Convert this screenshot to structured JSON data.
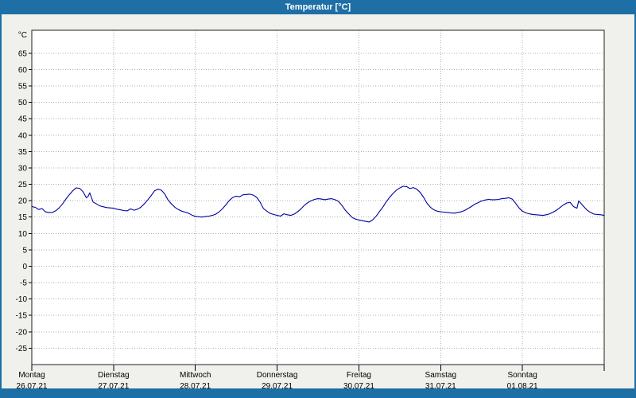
{
  "window": {
    "title": "Temperatur [°C]"
  },
  "colors": {
    "titlebar": "#1d6fa5",
    "background": "#f0f0ec",
    "plot_background": "#ffffff",
    "plot_border": "#202020",
    "gridline": "#b0b0b0",
    "line": "#0000a0"
  },
  "chart_data": {
    "type": "line",
    "title": "Temperatur [°C]",
    "legend": "none",
    "grid": {
      "style": "dotted",
      "horizontal_step_deg": 5,
      "vertical_step_hours": 24
    },
    "y_axis": {
      "unit": "°C",
      "ticks": [
        65,
        60,
        55,
        50,
        45,
        40,
        35,
        30,
        25,
        20,
        15,
        10,
        5,
        0,
        -5,
        -10,
        -15,
        -20,
        -25
      ],
      "ylim": [
        -30,
        72
      ]
    },
    "x_axis": {
      "hours_span": 168,
      "days": [
        {
          "name": "Montag",
          "date": "26.07.21"
        },
        {
          "name": "Dienstag",
          "date": "27.07.21"
        },
        {
          "name": "Mittwoch",
          "date": "28.07.21"
        },
        {
          "name": "Donnerstag",
          "date": "29.07.21"
        },
        {
          "name": "Freitag",
          "date": "30.07.21"
        },
        {
          "name": "Samstag",
          "date": "31.07.21"
        },
        {
          "name": "Sonntag",
          "date": "01.08.21"
        }
      ]
    },
    "series": [
      {
        "name": "Temperatur",
        "color": "#0000a0",
        "points": [
          [
            0,
            18.2
          ],
          [
            1,
            18.0
          ],
          [
            2,
            17.3
          ],
          [
            3,
            17.6
          ],
          [
            4,
            16.6
          ],
          [
            5,
            16.4
          ],
          [
            6,
            16.4
          ],
          [
            7,
            16.9
          ],
          [
            8,
            17.8
          ],
          [
            9,
            19.0
          ],
          [
            10,
            20.5
          ],
          [
            11,
            21.8
          ],
          [
            12,
            23.0
          ],
          [
            13,
            23.9
          ],
          [
            14,
            23.8
          ],
          [
            15,
            22.8
          ],
          [
            16,
            20.9
          ],
          [
            16.5,
            21.3
          ],
          [
            17,
            22.4
          ],
          [
            17.5,
            21.0
          ],
          [
            18,
            19.6
          ],
          [
            19,
            19.0
          ],
          [
            20,
            18.4
          ],
          [
            22,
            17.9
          ],
          [
            24,
            17.7
          ],
          [
            25,
            17.4
          ],
          [
            26,
            17.2
          ],
          [
            27,
            17.0
          ],
          [
            28,
            16.9
          ],
          [
            29,
            17.5
          ],
          [
            30,
            17.1
          ],
          [
            31,
            17.4
          ],
          [
            32,
            18.0
          ],
          [
            33,
            19.0
          ],
          [
            34,
            20.2
          ],
          [
            35,
            21.5
          ],
          [
            36,
            23.0
          ],
          [
            37,
            23.5
          ],
          [
            38,
            23.2
          ],
          [
            39,
            22.1
          ],
          [
            40,
            20.2
          ],
          [
            41,
            19.0
          ],
          [
            42,
            18.0
          ],
          [
            43,
            17.3
          ],
          [
            44,
            16.8
          ],
          [
            45,
            16.5
          ],
          [
            46,
            16.2
          ],
          [
            47,
            15.6
          ],
          [
            48,
            15.2
          ],
          [
            49,
            15.1
          ],
          [
            50,
            15.0
          ],
          [
            51,
            15.2
          ],
          [
            52,
            15.3
          ],
          [
            53,
            15.5
          ],
          [
            54,
            15.9
          ],
          [
            55,
            16.6
          ],
          [
            56,
            17.6
          ],
          [
            57,
            18.8
          ],
          [
            58,
            20.1
          ],
          [
            59,
            21.0
          ],
          [
            60,
            21.4
          ],
          [
            61,
            21.2
          ],
          [
            62,
            21.8
          ],
          [
            63,
            21.9
          ],
          [
            64,
            22.0
          ],
          [
            65,
            21.7
          ],
          [
            66,
            21.0
          ],
          [
            67,
            19.6
          ],
          [
            68,
            17.6
          ],
          [
            69,
            16.8
          ],
          [
            70,
            16.1
          ],
          [
            71,
            15.8
          ],
          [
            72,
            15.5
          ],
          [
            73,
            15.3
          ],
          [
            74,
            16.0
          ],
          [
            75,
            15.7
          ],
          [
            76,
            15.5
          ],
          [
            77,
            15.9
          ],
          [
            78,
            16.6
          ],
          [
            79,
            17.5
          ],
          [
            80,
            18.6
          ],
          [
            81,
            19.4
          ],
          [
            82,
            20.0
          ],
          [
            83,
            20.4
          ],
          [
            84,
            20.6
          ],
          [
            85,
            20.5
          ],
          [
            86,
            20.3
          ],
          [
            87,
            20.5
          ],
          [
            88,
            20.6
          ],
          [
            89,
            20.3
          ],
          [
            90,
            19.8
          ],
          [
            91,
            18.6
          ],
          [
            92,
            17.1
          ],
          [
            93,
            16.0
          ],
          [
            94,
            14.9
          ],
          [
            95,
            14.4
          ],
          [
            96,
            14.1
          ],
          [
            97,
            13.9
          ],
          [
            98,
            13.7
          ],
          [
            99,
            13.5
          ],
          [
            100,
            14.1
          ],
          [
            101,
            15.2
          ],
          [
            102,
            16.6
          ],
          [
            103,
            18.0
          ],
          [
            104,
            19.6
          ],
          [
            105,
            21.0
          ],
          [
            106,
            22.2
          ],
          [
            107,
            23.2
          ],
          [
            108,
            23.9
          ],
          [
            109,
            24.4
          ],
          [
            110,
            24.3
          ],
          [
            111,
            23.7
          ],
          [
            112,
            24.0
          ],
          [
            113,
            23.5
          ],
          [
            114,
            22.5
          ],
          [
            115,
            21.0
          ],
          [
            116,
            19.2
          ],
          [
            117,
            18.0
          ],
          [
            118,
            17.2
          ],
          [
            119,
            16.8
          ],
          [
            120,
            16.6
          ],
          [
            121,
            16.5
          ],
          [
            122,
            16.4
          ],
          [
            123,
            16.3
          ],
          [
            124,
            16.2
          ],
          [
            125,
            16.4
          ],
          [
            126,
            16.6
          ],
          [
            127,
            17.0
          ],
          [
            128,
            17.6
          ],
          [
            129,
            18.2
          ],
          [
            130,
            18.9
          ],
          [
            131,
            19.4
          ],
          [
            132,
            19.9
          ],
          [
            133,
            20.2
          ],
          [
            134,
            20.4
          ],
          [
            135,
            20.3
          ],
          [
            136,
            20.3
          ],
          [
            137,
            20.4
          ],
          [
            138,
            20.6
          ],
          [
            139,
            20.7
          ],
          [
            140,
            20.9
          ],
          [
            141,
            20.5
          ],
          [
            142,
            19.2
          ],
          [
            143,
            17.8
          ],
          [
            144,
            16.8
          ],
          [
            145,
            16.3
          ],
          [
            146,
            16.0
          ],
          [
            147,
            15.8
          ],
          [
            148,
            15.7
          ],
          [
            149,
            15.6
          ],
          [
            150,
            15.5
          ],
          [
            151,
            15.7
          ],
          [
            152,
            16.0
          ],
          [
            153,
            16.5
          ],
          [
            154,
            17.1
          ],
          [
            155,
            17.9
          ],
          [
            156,
            18.7
          ],
          [
            157,
            19.3
          ],
          [
            158,
            19.5
          ],
          [
            159,
            18.2
          ],
          [
            160,
            17.7
          ],
          [
            160.5,
            19.9
          ],
          [
            161,
            19.4
          ],
          [
            162,
            18.2
          ],
          [
            163,
            17.1
          ],
          [
            164,
            16.4
          ],
          [
            165,
            15.9
          ],
          [
            166,
            15.8
          ],
          [
            167,
            15.7
          ],
          [
            168,
            15.5
          ]
        ]
      }
    ]
  }
}
